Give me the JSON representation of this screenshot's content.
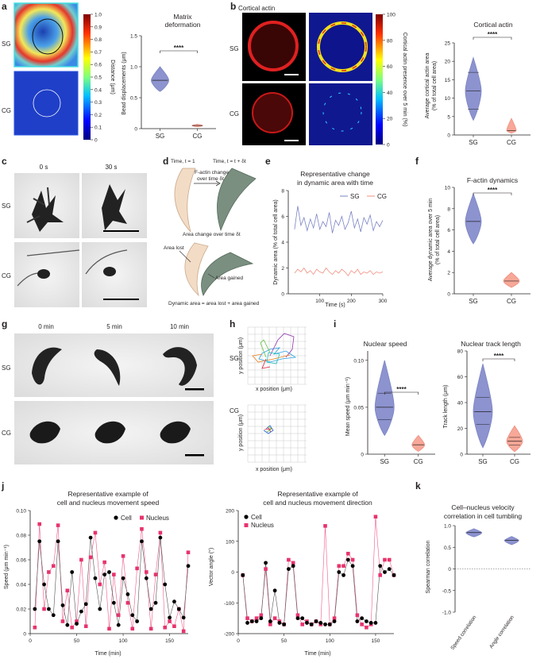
{
  "panels": {
    "a": {
      "letter": "a",
      "rows": [
        "SG",
        "CG"
      ],
      "colorbar": {
        "label": "Distance (μm)",
        "ticks": [
          "1.0",
          "0.9",
          "0.8",
          "0.7",
          "0.6",
          "0.5",
          "0.4",
          "0.3",
          "0.2",
          "0.1",
          "0"
        ]
      },
      "title_line1": "Matrix",
      "title_line2": "deformation",
      "ylabel": "Bead displacements (μm)",
      "yticks": [
        "0",
        "0.5",
        "1.0",
        "1.5"
      ],
      "groups": [
        "SG",
        "CG"
      ],
      "sig": "****"
    },
    "b": {
      "letter": "b",
      "header": "Cortical actin",
      "rows": [
        "SG",
        "CG"
      ],
      "colorbar": {
        "label": "Cortical actin presence over 5 min (%)",
        "ticks": [
          "100",
          "80",
          "60",
          "40",
          "20",
          "0"
        ]
      },
      "title": "Cortical actin",
      "ylabel_line1": "Average cortical actin area",
      "ylabel_line2": "(% of total cell area)",
      "yticks": [
        "0",
        "5",
        "10",
        "15",
        "20",
        "25"
      ],
      "groups": [
        "SG",
        "CG"
      ],
      "sig": "****"
    },
    "c": {
      "letter": "c",
      "cols": [
        "0 s",
        "30 s"
      ],
      "rows": [
        "SG",
        "CG"
      ]
    },
    "d": {
      "letter": "d",
      "time1": "Time, t = 1",
      "time2": "Time, t = t + δt",
      "fchange_line1": "F-actin change",
      "fchange_line2": "over time δt",
      "area_change": "Area change over time δt",
      "area_lost": "Area lost",
      "area_gained": "Area gained",
      "formula": "Dynamic area = area lost + area gained"
    },
    "e": {
      "letter": "e",
      "title_line1": "Representative change",
      "title_line2": "in dynamic area with time",
      "ylabel": "Dynamic area (% of total cell area)",
      "xlabel": "Time (s)",
      "legend": [
        "SG",
        "CG"
      ],
      "xticks": [
        "100",
        "200",
        "300"
      ],
      "yticks": [
        "0",
        "2",
        "4",
        "6",
        "8"
      ]
    },
    "f": {
      "letter": "f",
      "title": "F-actin dynamics",
      "ylabel_line1": "Average dynamic area over 5 min",
      "ylabel_line2": "(% of total cell area)",
      "yticks": [
        "0",
        "2",
        "4",
        "6",
        "8",
        "10"
      ],
      "groups": [
        "SG",
        "CG"
      ],
      "sig": "****"
    },
    "g": {
      "letter": "g",
      "cols": [
        "0 min",
        "5 min",
        "10 min"
      ],
      "rows": [
        "SG",
        "CG"
      ]
    },
    "h": {
      "letter": "h",
      "rows": [
        "SG",
        "CG"
      ],
      "ylabel": "y position (μm)",
      "xlabel": "x position (μm)"
    },
    "i": {
      "letter": "i",
      "title1": "Nuclear speed",
      "ylabel1": "Mean speed (μm min⁻¹)",
      "yticks1": [
        "0",
        "0.05",
        "0.10"
      ],
      "title2": "Nuclear track length",
      "ylabel2": "Track length (μm)",
      "yticks2": [
        "0",
        "20",
        "40",
        "60",
        "80"
      ],
      "groups": [
        "SG",
        "CG"
      ],
      "sig": "****"
    },
    "j": {
      "letter": "j",
      "title1_line1": "Representative example of",
      "title1_line2": "cell and nucleus movement speed",
      "ylabel1": "Speed (μm min⁻¹)",
      "title2_line1": "Representative example of",
      "title2_line2": "cell and nucleus movement direction",
      "ylabel2": "Vector angle (°)",
      "xlabel": "Time (min)",
      "legend_cell": "Cell",
      "legend_nucleus": "Nucleus"
    },
    "k": {
      "letter": "k",
      "title_line1": "Cell–nucleus velocity",
      "title_line2": "correlation in cell tumbling",
      "ylabel": "Spearman correlation",
      "yticks": [
        "-1.0",
        "-0.5",
        "0",
        "0.5",
        "1.0"
      ],
      "cats": [
        "Speed correlation",
        "Angle correlation"
      ]
    }
  },
  "colors": {
    "sg": "#7b83c4",
    "sg_fill": "#8c93cf",
    "cg": "#f08f80",
    "cg_fill": "#f7a898",
    "nucleus": "#e8336d",
    "cell": "#000000"
  },
  "chart_data": [
    {
      "type": "violin",
      "id": "a",
      "title": "Matrix deformation",
      "ylabel": "Bead displacements (μm)",
      "ylim": [
        0,
        1.5
      ],
      "categories": [
        "SG",
        "CG"
      ],
      "values": [
        {
          "min": 0.6,
          "median": 0.78,
          "max": 1.0
        },
        {
          "min": 0.03,
          "median": 0.05,
          "max": 0.07
        }
      ]
    },
    {
      "type": "violin",
      "id": "b",
      "title": "Cortical actin",
      "ylabel": "Average cortical actin area (% of total cell area)",
      "ylim": [
        0,
        25
      ],
      "categories": [
        "SG",
        "CG"
      ],
      "values": [
        {
          "min": 4,
          "q1": 7,
          "median": 12,
          "q3": 17,
          "max": 21
        },
        {
          "min": 0.5,
          "median": 1.2,
          "max": 4.5
        }
      ]
    },
    {
      "type": "line",
      "id": "e",
      "title": "Representative change in dynamic area with time",
      "xlabel": "Time (s)",
      "ylabel": "Dynamic area (% of total cell area)",
      "xlim": [
        0,
        300
      ],
      "ylim": [
        0,
        8
      ],
      "x": [
        20,
        30,
        40,
        50,
        60,
        70,
        80,
        90,
        100,
        110,
        120,
        130,
        140,
        150,
        160,
        170,
        180,
        190,
        200,
        210,
        220,
        230,
        240,
        250,
        260,
        270,
        280,
        290,
        300
      ],
      "series": [
        {
          "name": "SG",
          "values": [
            5.0,
            6.8,
            5.3,
            5.9,
            4.9,
            5.8,
            5.1,
            6.2,
            5.0,
            5.6,
            5.2,
            6.3,
            4.7,
            5.7,
            5.3,
            6.0,
            5.0,
            5.5,
            6.4,
            5.1,
            5.8,
            4.8,
            5.9,
            5.4,
            6.1,
            4.9,
            5.6,
            5.2,
            5.7
          ]
        },
        {
          "name": "CG",
          "values": [
            1.6,
            1.9,
            1.7,
            2.0,
            1.6,
            1.8,
            1.5,
            1.9,
            1.7,
            1.6,
            2.0,
            1.7,
            1.5,
            1.8,
            1.6,
            1.9,
            1.7,
            1.4,
            1.8,
            1.6,
            1.9,
            1.5,
            1.7,
            1.6,
            1.8,
            1.5,
            1.7,
            1.6,
            1.7
          ]
        }
      ]
    },
    {
      "type": "violin",
      "id": "f",
      "title": "F-actin dynamics",
      "ylabel": "Average dynamic area over 5 min (% of total cell area)",
      "ylim": [
        0,
        10
      ],
      "categories": [
        "SG",
        "CG"
      ],
      "values": [
        {
          "min": 4.7,
          "median": 6.8,
          "max": 9.4
        },
        {
          "min": 0.6,
          "median": 1.2,
          "max": 2.0
        }
      ]
    },
    {
      "type": "violin",
      "id": "i-speed",
      "title": "Nuclear speed",
      "ylabel": "Mean speed (μm min⁻¹)",
      "ylim": [
        0,
        0.11
      ],
      "categories": [
        "SG",
        "CG"
      ],
      "values": [
        {
          "min": 0.02,
          "q1": 0.037,
          "median": 0.05,
          "q3": 0.065,
          "max": 0.1
        },
        {
          "min": 0.003,
          "median": 0.01,
          "max": 0.02
        }
      ]
    },
    {
      "type": "violin",
      "id": "i-track",
      "title": "Nuclear track length",
      "ylabel": "Track length (μm)",
      "ylim": [
        0,
        80
      ],
      "categories": [
        "SG",
        "CG"
      ],
      "values": [
        {
          "min": 5,
          "q1": 23,
          "median": 33,
          "q3": 44,
          "max": 70
        },
        {
          "min": 2,
          "q1": 7,
          "median": 10,
          "q3": 13,
          "max": 22
        }
      ]
    },
    {
      "type": "line",
      "id": "j-speed",
      "title": "Representative example of cell and nucleus movement speed",
      "xlabel": "Time (min)",
      "ylabel": "Speed (μm min⁻¹)",
      "xlim": [
        0,
        170
      ],
      "ylim": [
        0,
        0.1
      ],
      "xticks": [
        0,
        50,
        100,
        150
      ],
      "yticks": [
        0,
        0.02,
        0.04,
        0.06,
        0.08,
        0.1
      ],
      "x": [
        5,
        10,
        15,
        20,
        25,
        30,
        35,
        40,
        45,
        50,
        55,
        60,
        65,
        70,
        75,
        80,
        85,
        90,
        95,
        100,
        105,
        110,
        115,
        120,
        125,
        130,
        135,
        140,
        145,
        150,
        155,
        160,
        165,
        170
      ],
      "series": [
        {
          "name": "Cell",
          "values": [
            0.02,
            0.075,
            0.04,
            0.02,
            0.015,
            0.075,
            0.023,
            0.007,
            0.05,
            0.008,
            0.018,
            0.024,
            0.078,
            0.045,
            0.02,
            0.048,
            0.05,
            0.025,
            0.007,
            0.045,
            0.032,
            0.015,
            0.01,
            0.075,
            0.045,
            0.02,
            0.025,
            0.078,
            0.04,
            0.013,
            0.026,
            0.02,
            0.013,
            0.055
          ]
        },
        {
          "name": "Nucleus",
          "values": [
            0.005,
            0.089,
            0.02,
            0.05,
            0.055,
            0.088,
            0.01,
            0.035,
            0.005,
            0.01,
            0.06,
            0.006,
            0.062,
            0.082,
            0.04,
            0.058,
            0.004,
            0.048,
            0.015,
            0.063,
            0.025,
            0.004,
            0.053,
            0.085,
            0.05,
            0.004,
            0.048,
            0.082,
            0.005,
            0.01,
            0.006,
            0.02,
            0.002,
            0.066
          ]
        }
      ]
    },
    {
      "type": "line",
      "id": "j-angle",
      "title": "Representative example of cell and nucleus movement direction",
      "xlabel": "Time (min)",
      "ylabel": "Vector angle (°)",
      "xlim": [
        0,
        170
      ],
      "ylim": [
        -200,
        200
      ],
      "xticks": [
        0,
        50,
        100,
        150
      ],
      "yticks": [
        -200,
        -100,
        0,
        100,
        200
      ],
      "x": [
        5,
        10,
        15,
        20,
        25,
        30,
        35,
        40,
        45,
        50,
        55,
        60,
        65,
        70,
        75,
        80,
        85,
        90,
        95,
        100,
        105,
        110,
        115,
        120,
        125,
        130,
        135,
        140,
        145,
        150,
        155,
        160,
        165,
        170
      ],
      "series": [
        {
          "name": "Cell",
          "values": [
            -10,
            -165,
            -160,
            -160,
            -150,
            30,
            -160,
            -60,
            -165,
            -170,
            10,
            20,
            -150,
            -150,
            -165,
            -170,
            -160,
            -165,
            -170,
            -170,
            -160,
            0,
            -10,
            40,
            20,
            -160,
            -150,
            -160,
            -165,
            -165,
            20,
            0,
            10,
            -10
          ]
        },
        {
          "name": "Nucleus",
          "values": [
            -10,
            -150,
            -160,
            -150,
            -140,
            10,
            -170,
            -150,
            -160,
            -170,
            40,
            30,
            -140,
            -170,
            -160,
            -170,
            -160,
            -170,
            150,
            -170,
            -150,
            20,
            20,
            60,
            40,
            -140,
            -170,
            -180,
            -170,
            180,
            -10,
            40,
            40,
            -10
          ]
        }
      ]
    },
    {
      "type": "violin",
      "id": "k",
      "title": "Cell–nucleus velocity correlation in cell tumbling",
      "ylabel": "Spearman correlation",
      "ylim": [
        -1,
        1
      ],
      "categories": [
        "Speed correlation",
        "Angle correlation"
      ],
      "values": [
        {
          "min": 0.74,
          "median": 0.84,
          "max": 0.93
        },
        {
          "min": 0.56,
          "median": 0.66,
          "max": 0.75
        }
      ]
    }
  ]
}
